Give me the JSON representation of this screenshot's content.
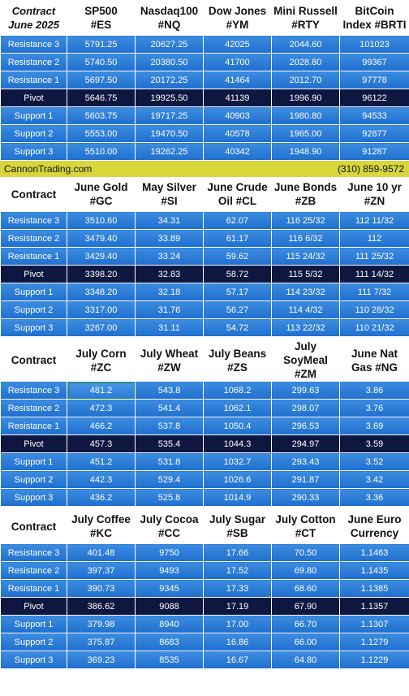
{
  "sections": [
    {
      "corner": [
        "Contract",
        "June 2025"
      ],
      "headers": [
        [
          "SP500",
          "#ES"
        ],
        [
          "Nasdaq100",
          "#NQ"
        ],
        [
          "Dow Jones",
          "#YM"
        ],
        [
          "Mini Russell",
          "#RTY"
        ],
        [
          "BitCoin",
          "Index #BRTI"
        ]
      ],
      "rows": [
        {
          "label": "Resistance 3",
          "values": [
            "5791.25",
            "20627.25",
            "42025",
            "2044.60",
            "101023"
          ]
        },
        {
          "label": "Resistance 2",
          "values": [
            "5740.50",
            "20380.50",
            "41700",
            "2028.80",
            "99367"
          ]
        },
        {
          "label": "Resistance 1",
          "values": [
            "5697.50",
            "20172.25",
            "41464",
            "2012.70",
            "97778"
          ]
        },
        {
          "label": "Pivot",
          "values": [
            "5646.75",
            "19925.50",
            "41139",
            "1996.90",
            "96122"
          ]
        },
        {
          "label": "Support 1",
          "values": [
            "5603.75",
            "19717.25",
            "40903",
            "1980.80",
            "94533"
          ]
        },
        {
          "label": "Support 2",
          "values": [
            "5553.00",
            "19470.50",
            "40578",
            "1965.00",
            "92877"
          ]
        },
        {
          "label": "Support 3",
          "values": [
            "5510.00",
            "19262.25",
            "40342",
            "1948.90",
            "91287"
          ]
        }
      ]
    },
    {
      "corner": [
        "Contract"
      ],
      "headers": [
        [
          "June Gold",
          "#GC"
        ],
        [
          "May Silver",
          "#SI"
        ],
        [
          "June Crude",
          "Oil #CL"
        ],
        [
          "June Bonds",
          "#ZB"
        ],
        [
          "June 10 yr",
          "#ZN"
        ]
      ],
      "rows": [
        {
          "label": "Resistance 3",
          "values": [
            "3510.60",
            "34.31",
            "62.07",
            "116 25/32",
            "112 11/32"
          ]
        },
        {
          "label": "Resistance 2",
          "values": [
            "3479.40",
            "33.89",
            "61.17",
            "116  6/32",
            "112"
          ]
        },
        {
          "label": "Resistance 1",
          "values": [
            "3429.40",
            "33.24",
            "59.62",
            "115 24/32",
            "111 25/32"
          ]
        },
        {
          "label": "Pivot",
          "values": [
            "3398.20",
            "32.83",
            "58.72",
            "115  5/32",
            "111 14/32"
          ]
        },
        {
          "label": "Support 1",
          "values": [
            "3348.20",
            "32.18",
            "57.17",
            "114 23/32",
            "111  7/32"
          ]
        },
        {
          "label": "Support 2",
          "values": [
            "3317.00",
            "31.76",
            "56.27",
            "114  4/32",
            "110 28/32"
          ]
        },
        {
          "label": "Support 3",
          "values": [
            "3267.00",
            "31.11",
            "54.72",
            "113 22/32",
            "110 21/32"
          ]
        }
      ]
    },
    {
      "corner": [
        "Contract"
      ],
      "headers": [
        [
          "July Corn",
          "#ZC"
        ],
        [
          "July  Wheat",
          "#ZW"
        ],
        [
          "July Beans",
          "#ZS"
        ],
        [
          "July",
          "SoyMeal",
          "#ZM"
        ],
        [
          "June Nat",
          "Gas #NG"
        ]
      ],
      "rows": [
        {
          "label": "Resistance 3",
          "values": [
            "481.2",
            "543.8",
            "1068.2",
            "299.63",
            "3.86"
          ]
        },
        {
          "label": "Resistance 2",
          "values": [
            "472.3",
            "541.4",
            "1062.1",
            "298.07",
            "3.76"
          ]
        },
        {
          "label": "Resistance 1",
          "values": [
            "466.2",
            "537.8",
            "1050.4",
            "296.53",
            "3.69"
          ]
        },
        {
          "label": "Pivot",
          "values": [
            "457.3",
            "535.4",
            "1044.3",
            "294.97",
            "3.59"
          ]
        },
        {
          "label": "Support 1",
          "values": [
            "451.2",
            "531.8",
            "1032.7",
            "293.43",
            "3.52"
          ]
        },
        {
          "label": "Support 2",
          "values": [
            "442.3",
            "529.4",
            "1026.6",
            "291.87",
            "3.42"
          ]
        },
        {
          "label": "Support 3",
          "values": [
            "436.2",
            "525.8",
            "1014.9",
            "290.33",
            "3.36"
          ]
        }
      ]
    },
    {
      "corner": [
        "Contract"
      ],
      "headers": [
        [
          "July Coffee",
          "#KC"
        ],
        [
          "July Cocoa",
          "#CC"
        ],
        [
          "July Sugar",
          "#SB"
        ],
        [
          "July Cotton",
          "#CT"
        ],
        [
          "June Euro",
          "Currency"
        ]
      ],
      "rows": [
        {
          "label": "Resistance 3",
          "values": [
            "401.48",
            "9750",
            "17.66",
            "70.50",
            "1.1463"
          ]
        },
        {
          "label": "Resistance 2",
          "values": [
            "397.37",
            "9493",
            "17.52",
            "69.80",
            "1.1435"
          ]
        },
        {
          "label": "Resistance 1",
          "values": [
            "390.73",
            "9345",
            "17.33",
            "68.60",
            "1.1385"
          ]
        },
        {
          "label": "Pivot",
          "values": [
            "386.62",
            "9088",
            "17.19",
            "67.90",
            "1.1357"
          ]
        },
        {
          "label": "Support 1",
          "values": [
            "379.98",
            "8940",
            "17.00",
            "66.70",
            "1.1307"
          ]
        },
        {
          "label": "Support 2",
          "values": [
            "375.87",
            "8683",
            "16.86",
            "66.00",
            "1.1279"
          ]
        },
        {
          "label": "Support 3",
          "values": [
            "369.23",
            "8535",
            "16.67",
            "64.80",
            "1.1229"
          ]
        }
      ]
    }
  ],
  "banner": {
    "site": "CannonTrading.com",
    "phone": "(310) 859-9572"
  },
  "colors": {
    "row_blue": "#2a7ad8",
    "pivot_navy": "#0e1740",
    "banner_yellow": "#d8d63a"
  }
}
